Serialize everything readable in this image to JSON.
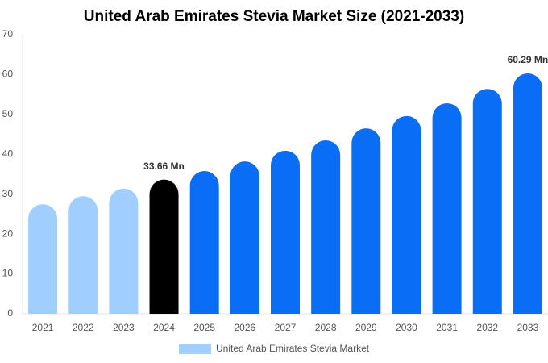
{
  "chart_data": {
    "type": "bar",
    "title": "United Arab Emirates Stevia Market Size (2021-2033)",
    "categories": [
      "2021",
      "2022",
      "2023",
      "2024",
      "2025",
      "2026",
      "2027",
      "2028",
      "2029",
      "2030",
      "2031",
      "2032",
      "2033"
    ],
    "series": [
      {
        "name": "United Arab Emirates Stevia Market",
        "color": "#a0cfff",
        "values": [
          27.5,
          29.5,
          31.4,
          33.66,
          35.8,
          38.2,
          40.9,
          43.5,
          46.5,
          49.6,
          52.8,
          56.4,
          60.29
        ],
        "value_labels": [
          null,
          null,
          null,
          "33.66 Mn",
          null,
          null,
          null,
          null,
          null,
          null,
          null,
          null,
          "60.29 Mn"
        ],
        "bar_colors": [
          "#a0cfff",
          "#a0cfff",
          "#a0cfff",
          "#000000",
          "#0a6df5",
          "#0a6df5",
          "#0a6df5",
          "#0a6df5",
          "#0a6df5",
          "#0a6df5",
          "#0a6df5",
          "#0a6df5",
          "#0a6df5"
        ]
      }
    ],
    "ylim": [
      0,
      70
    ],
    "yticks": [
      0,
      10,
      20,
      30,
      40,
      50,
      60,
      70
    ],
    "grid": false,
    "legend": "bottom"
  }
}
